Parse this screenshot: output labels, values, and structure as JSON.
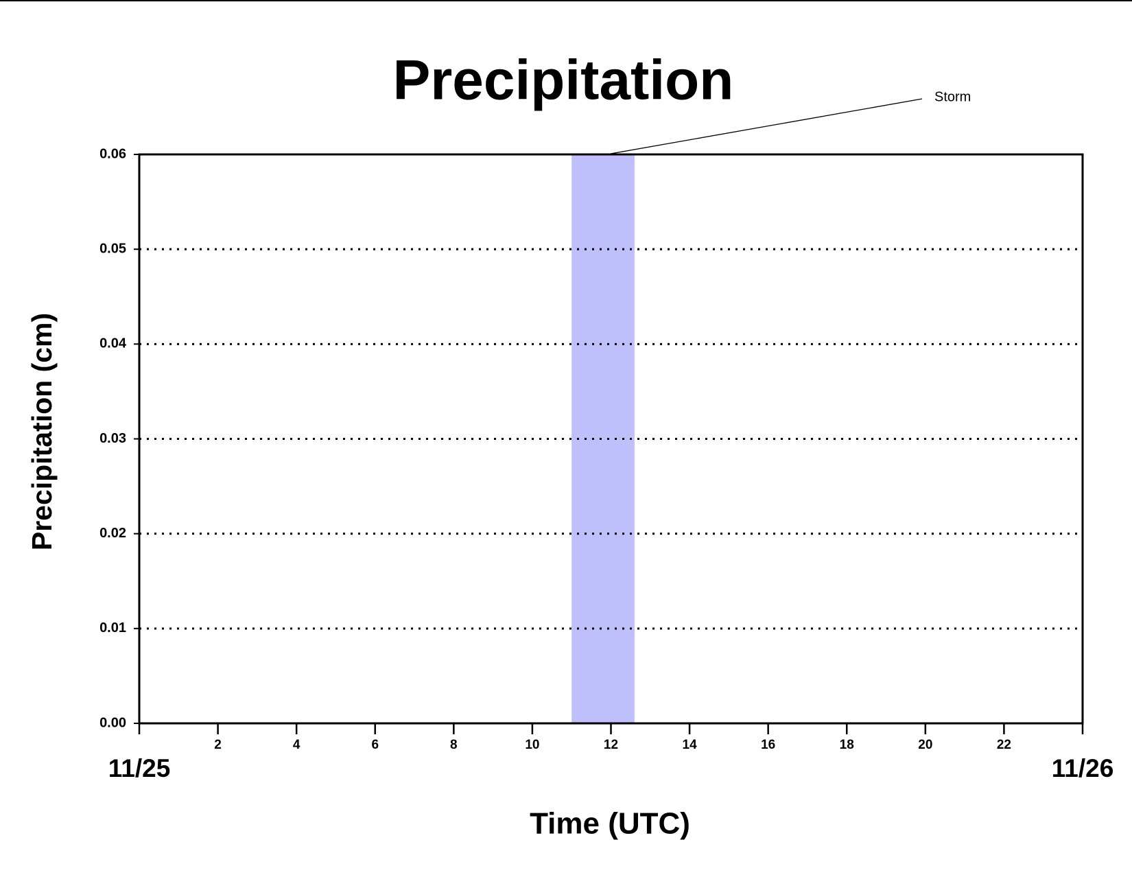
{
  "chart_data": {
    "type": "line",
    "title": "Precipitation",
    "xlabel": "Time (UTC)",
    "ylabel": "Precipitation (cm)",
    "x": [
      0,
      1,
      2,
      3,
      4,
      5,
      6,
      7,
      8,
      9,
      10,
      11,
      12,
      13,
      14,
      15,
      16,
      17,
      18,
      19,
      20,
      21,
      22,
      23,
      24
    ],
    "series": [
      {
        "name": "Precipitation",
        "color": "#8b1a1a",
        "values": [
          0,
          0,
          0,
          0,
          0,
          0,
          0,
          0,
          0,
          0,
          0,
          0,
          0,
          0,
          0,
          0,
          0,
          0,
          0,
          0,
          0,
          0,
          0,
          0,
          0
        ]
      }
    ],
    "spans": [
      {
        "label": "Storm",
        "start": 11,
        "end": 12.6,
        "color": "#bfbffb"
      }
    ],
    "xlim": [
      0,
      24
    ],
    "xticks": [
      {
        "value": 0,
        "label": "11/25"
      },
      2,
      4,
      6,
      8,
      10,
      12,
      14,
      16,
      18,
      20,
      22,
      {
        "value": 24,
        "label": "11/26"
      }
    ],
    "ylim": [
      0,
      0.06
    ],
    "yticks": [
      {
        "value": 0,
        "label": "0.00"
      },
      0.01,
      0.02,
      0.03,
      0.04,
      0.05,
      0.06
    ],
    "grid": "dotted"
  }
}
